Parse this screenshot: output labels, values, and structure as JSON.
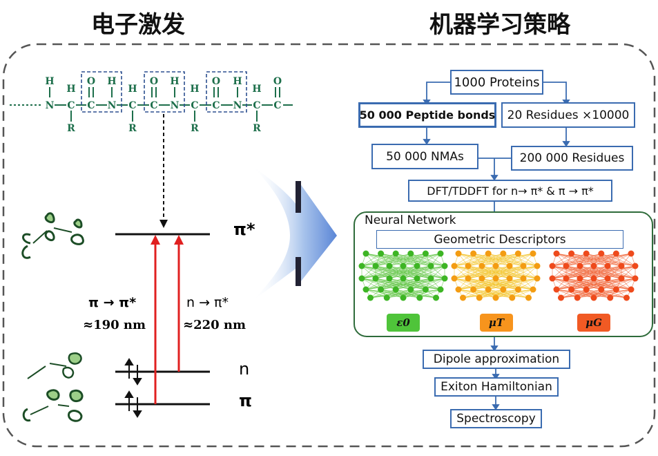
{
  "titles": {
    "left": "电子激发",
    "right": "机器学习策略"
  },
  "peptide": {
    "atoms": {
      "H": "H",
      "N": "N",
      "C": "C",
      "O": "O",
      "R": "R"
    }
  },
  "levels": {
    "pi_star": "π*",
    "n": "n",
    "pi": "π"
  },
  "transitions": {
    "pp_label": "π → π*",
    "pp_wavelength": "≈190 nm",
    "np_label": "n → π*",
    "np_wavelength": "≈220 nm"
  },
  "flow": {
    "proteins": "1000 Proteins",
    "peptide_bonds": "50 000 Peptide bonds",
    "residues_x": "20 Residues ×10000",
    "nmas": "50 000 NMAs",
    "residues": "200 000 Residues",
    "dft": "DFT/TDDFT for n→ π*  & π → π*",
    "neural_network": "Neural Network",
    "descriptors": "Geometric Descriptors",
    "dipole": "Dipole approximation",
    "exciton": "Exiton Hamiltonian",
    "spectroscopy": "Spectroscopy"
  },
  "outputs": [
    {
      "label": "ε0",
      "color": "#4fc43a"
    },
    {
      "label": "μT",
      "color": "#f7941d"
    },
    {
      "label": "μG",
      "color": "#f15a24"
    }
  ],
  "colors": {
    "flow_border": "#3a6bb0",
    "nn_border": "#2e6b3a",
    "arrow_red": "#e02020",
    "chem_green": "#1c6e4a",
    "net_green": "#58c23a",
    "net_yellow": "#f2c01b",
    "net_red": "#f05a2a"
  }
}
